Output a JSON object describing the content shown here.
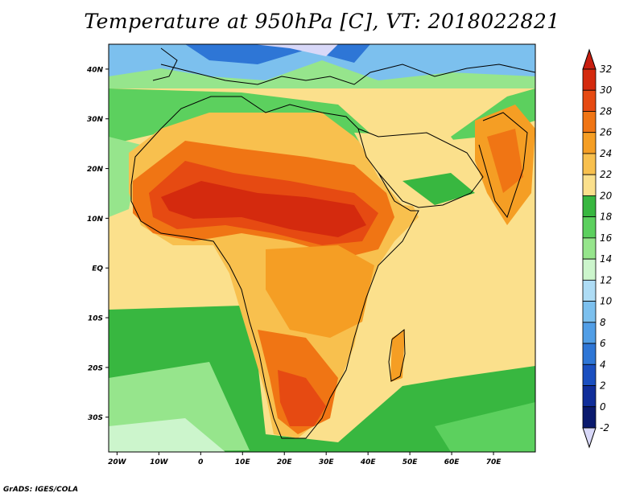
{
  "title": "Temperature at 950hPa [C], VT: 2018022821",
  "credit": "GrADS: IGES/COLA",
  "map": {
    "lat_labels": [
      "40N",
      "30N",
      "20N",
      "10N",
      "EQ",
      "10S",
      "20S",
      "30S"
    ],
    "lon_labels": [
      "20W",
      "10W",
      "0",
      "10E",
      "20E",
      "30E",
      "40E",
      "50E",
      "60E",
      "70E"
    ],
    "lon_range": [
      -22,
      80
    ],
    "lat_range": [
      -37,
      45
    ]
  },
  "colorbar": {
    "labels": [
      "32",
      "30",
      "28",
      "26",
      "24",
      "22",
      "20",
      "18",
      "16",
      "14",
      "12",
      "10",
      "8",
      "6",
      "4",
      "2",
      "0",
      "-2"
    ],
    "colors": [
      "#d42a0e",
      "#e64a12",
      "#f07514",
      "#f59e24",
      "#f8c04e",
      "#fbe08c",
      "#38b740",
      "#5cd05e",
      "#96e58c",
      "#ccf5cc",
      "#aedcf5",
      "#7cc0ee",
      "#519ee6",
      "#2e76d6",
      "#1a4fc0",
      "#102e9a",
      "#0a1a6e"
    ],
    "top_color": "#c81e10",
    "bottom_color": "#d8d8f8"
  }
}
